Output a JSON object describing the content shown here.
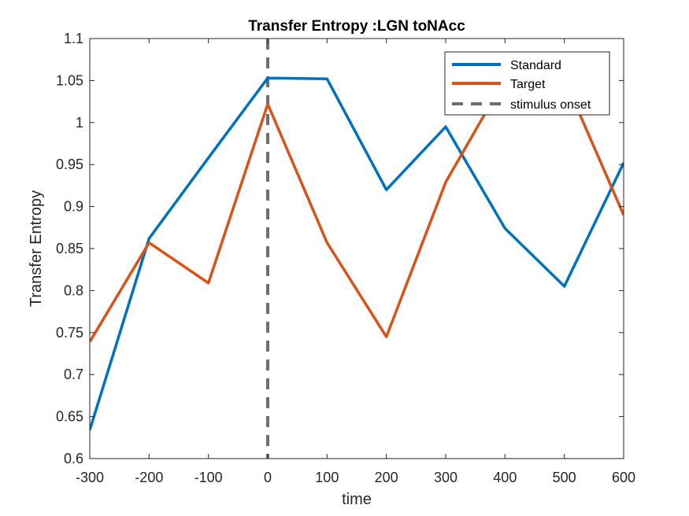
{
  "chart_data": {
    "type": "line",
    "title": "Transfer Entropy :LGN toNAcc",
    "xlabel": "time",
    "ylabel": "Transfer Entropy",
    "xlim": [
      -300,
      600
    ],
    "ylim": [
      0.6,
      1.1
    ],
    "xticks": [
      -300,
      -200,
      -100,
      0,
      100,
      200,
      300,
      400,
      500,
      600
    ],
    "xtick_labels": [
      "-300",
      "-200",
      "-100",
      "0",
      "100",
      "200",
      "300",
      "400",
      "500",
      "600"
    ],
    "yticks": [
      0.6,
      0.65,
      0.7,
      0.75,
      0.8,
      0.85,
      0.9,
      0.95,
      1.0,
      1.05,
      1.1
    ],
    "ytick_labels": [
      "0.6",
      "0.65",
      "0.7",
      "0.75",
      "0.8",
      "0.85",
      "0.9",
      "0.95",
      "1",
      "1.05",
      "1.1"
    ],
    "x": [
      -300,
      -200,
      -100,
      0,
      100,
      200,
      300,
      400,
      500,
      600
    ],
    "series": [
      {
        "name": "Standard",
        "color": "#0072BD",
        "values": [
          0.634,
          0.862,
          0.958,
          1.053,
          1.052,
          0.92,
          0.995,
          0.874,
          0.805,
          0.952
        ]
      },
      {
        "name": "Target",
        "color": "#D95319",
        "values": [
          0.739,
          0.857,
          0.809,
          1.022,
          0.857,
          0.745,
          0.929,
          1.052,
          1.052,
          0.89
        ]
      }
    ],
    "vline": {
      "name": "stimulus onset",
      "x": 0,
      "color": "#6E6E6E",
      "style": "dashed"
    },
    "grid": false,
    "legend_position": "top-right"
  }
}
